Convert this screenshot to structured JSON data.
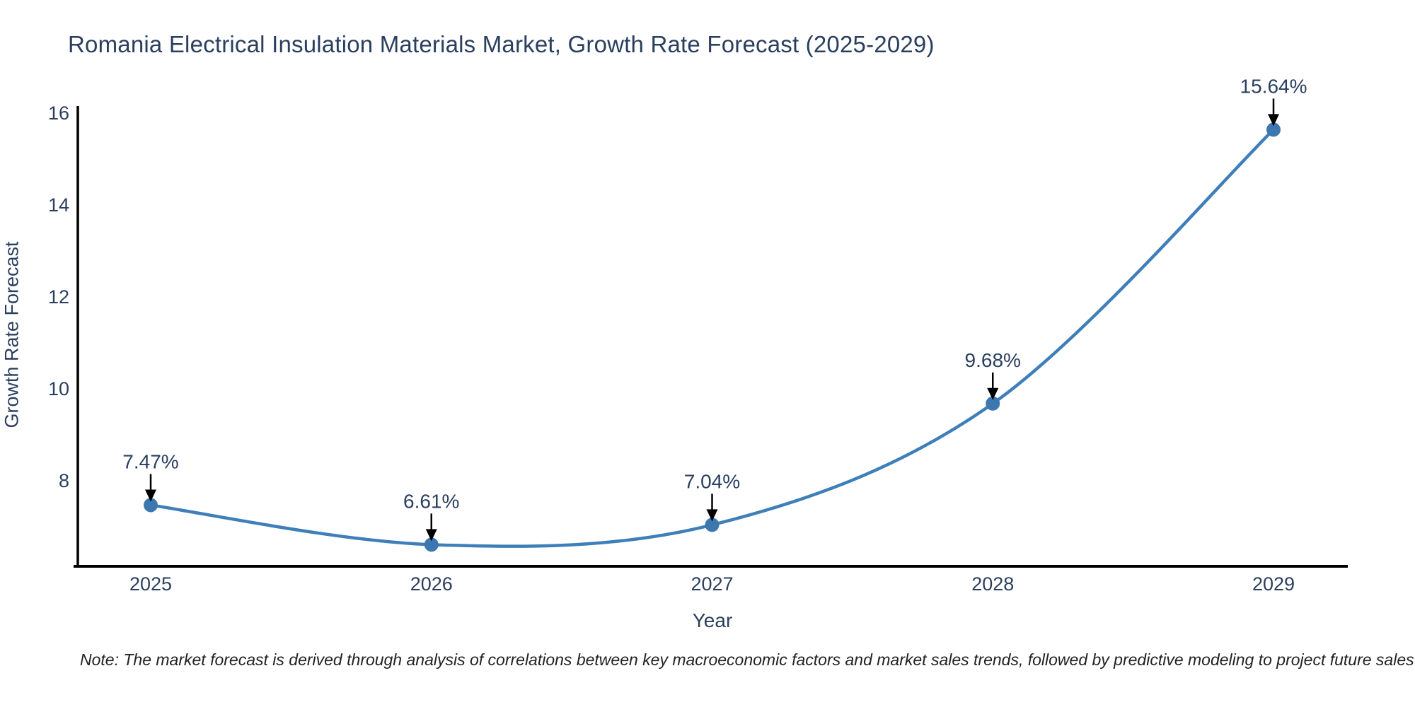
{
  "title": "Romania Electrical Insulation Materials Market, Growth Rate Forecast (2025-2029)",
  "note": "Note: The market forecast is derived through analysis of correlations between key macroeconomic factors and market sales trends, followed by predictive modeling to project future sales",
  "chart_data": {
    "type": "line",
    "title": "Romania Electrical Insulation Materials Market, Growth Rate Forecast (2025-2029)",
    "xlabel": "Year",
    "ylabel": "Growth Rate Forecast",
    "categories": [
      "2025",
      "2026",
      "2027",
      "2028",
      "2029"
    ],
    "values": [
      7.47,
      6.61,
      7.04,
      9.68,
      15.64
    ],
    "point_labels": [
      "7.47%",
      "6.61%",
      "7.04%",
      "9.68%",
      "15.64%"
    ],
    "yticks": [
      8,
      10,
      12,
      14,
      16
    ],
    "ylim": [
      6.15,
      16.15
    ],
    "line_shape": "spline",
    "grid": false,
    "legend": "none",
    "colors": {
      "line": "#3f7fb9",
      "marker": "#3c78af",
      "axis": "#000000",
      "tick_text": "#2a3f5f",
      "annotation_text": "#2a3f5f",
      "arrow": "#000000",
      "title_text": "#2a3f5f",
      "note_text": "#222222",
      "background": "#ffffff"
    }
  }
}
